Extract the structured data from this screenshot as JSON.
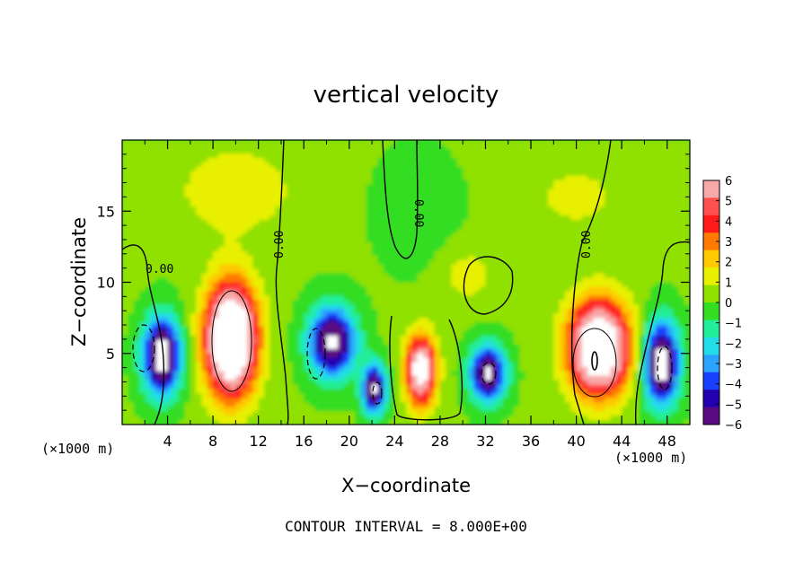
{
  "chart_data": {
    "type": "heatmap",
    "title": "vertical velocity",
    "xlabel": "X−coordinate",
    "ylabel": "Z−coordinate",
    "x_unit_label": "(×1000 m)",
    "z_unit_label": "(×1000 m)",
    "footnote": "CONTOUR INTERVAL = 8.000E+00",
    "xlim": [
      0,
      50
    ],
    "ylim": [
      0,
      20
    ],
    "x_ticks": [
      4,
      8,
      12,
      16,
      20,
      24,
      28,
      32,
      36,
      40,
      44,
      48
    ],
    "x_tick_labels": [
      "4",
      "8",
      "12",
      "16",
      "20",
      "24",
      "28",
      "32",
      "36",
      "40",
      "44",
      "48"
    ],
    "y_ticks": [
      5,
      10,
      15
    ],
    "y_tick_labels": [
      "5",
      "10",
      "15"
    ],
    "colorbar": {
      "ticks": [
        6,
        5,
        4,
        3,
        2,
        1,
        0,
        -1,
        -2,
        -3,
        -4,
        -5,
        -6
      ],
      "tick_labels": [
        "6",
        "5",
        "4",
        "3",
        "2",
        "1",
        "0",
        "−1",
        "−2",
        "−3",
        "−4",
        "−5",
        "−6"
      ],
      "colors": [
        "#f7a8a8",
        "#ff5050",
        "#ff1a1a",
        "#ff7a00",
        "#ffc800",
        "#e8f000",
        "#90e000",
        "#33dd22",
        "#22ee99",
        "#22dde8",
        "#2aa4ff",
        "#1a40ff",
        "#2200b0",
        "#5a0a80"
      ]
    },
    "contour_labels": [
      "0.00",
      "0.00",
      "0.00",
      "0.00"
    ],
    "cells": [
      {
        "x": 3.5,
        "z": 4.8,
        "sx": 1.6,
        "sz": 2.6,
        "w": -8
      },
      {
        "x": 9.6,
        "z": 6.0,
        "sx": 2.2,
        "sz": 3.8,
        "w": 11
      },
      {
        "x": 18.5,
        "z": 5.8,
        "sx": 2.0,
        "sz": 2.4,
        "w": -7
      },
      {
        "x": 22.2,
        "z": 2.5,
        "sx": 1.0,
        "sz": 1.7,
        "w": -7
      },
      {
        "x": 26.3,
        "z": 3.8,
        "sx": 1.3,
        "sz": 2.4,
        "w": 8
      },
      {
        "x": 32.2,
        "z": 3.6,
        "sx": 1.5,
        "sz": 1.9,
        "w": -7
      },
      {
        "x": 42.0,
        "z": 5.4,
        "sx": 2.6,
        "sz": 3.2,
        "w": 10
      },
      {
        "x": 47.5,
        "z": 4.3,
        "sx": 1.5,
        "sz": 2.8,
        "w": -8
      },
      {
        "x": 30.5,
        "z": 10.5,
        "sx": 2.5,
        "sz": 2.0,
        "w": 1.2
      },
      {
        "x": 10.0,
        "z": 16.5,
        "sx": 5.0,
        "sz": 3.0,
        "w": 1.6
      },
      {
        "x": 40.0,
        "z": 16.0,
        "sx": 4.0,
        "sz": 2.5,
        "w": 1.1
      },
      {
        "x": 26.0,
        "z": 15.0,
        "sx": 3.5,
        "sz": 4.0,
        "w": -0.6
      }
    ]
  }
}
